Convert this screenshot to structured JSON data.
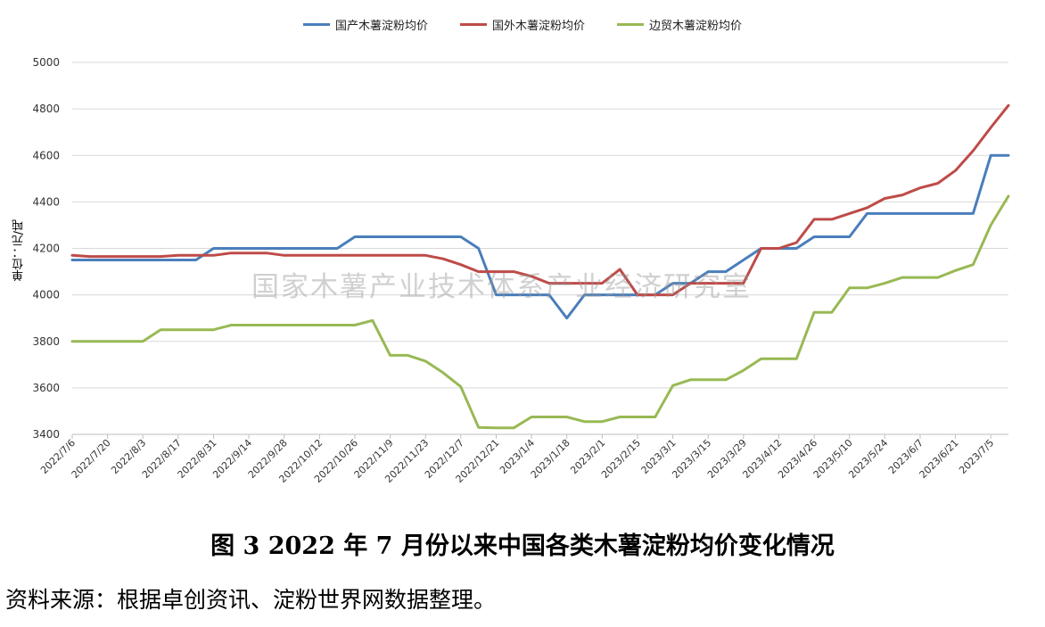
{
  "chart_data": {
    "type": "line",
    "title": "",
    "xlabel": "",
    "ylabel": "单位：元/吨",
    "ylim": [
      3400,
      5000
    ],
    "yticks": [
      3400,
      3600,
      3800,
      4000,
      4200,
      4400,
      4600,
      4800,
      5000
    ],
    "grid": "horizontal",
    "legend_position": "top",
    "xtick_labels": [
      "2022/7/6",
      "2022/7/20",
      "2022/8/3",
      "2022/8/17",
      "2022/8/31",
      "2022/9/14",
      "2022/9/28",
      "2022/10/12",
      "2022/10/26",
      "2022/11/9",
      "2022/11/23",
      "2022/12/7",
      "2022/12/21",
      "2023/1/4",
      "2023/1/18",
      "2023/2/1",
      "2023/2/15",
      "2023/3/1",
      "2023/3/15",
      "2023/3/29",
      "2023/4/12",
      "2023/4/26",
      "2023/5/10",
      "2023/5/24",
      "2023/6/7",
      "2023/6/21",
      "2023/7/5"
    ],
    "x": [
      "2022/7/6",
      "2022/7/13",
      "2022/7/20",
      "2022/7/27",
      "2022/8/3",
      "2022/8/10",
      "2022/8/17",
      "2022/8/24",
      "2022/8/31",
      "2022/9/7",
      "2022/9/14",
      "2022/9/21",
      "2022/9/28",
      "2022/10/5",
      "2022/10/12",
      "2022/10/19",
      "2022/10/26",
      "2022/11/2",
      "2022/11/9",
      "2022/11/16",
      "2022/11/23",
      "2022/11/30",
      "2022/12/7",
      "2022/12/14",
      "2022/12/21",
      "2022/12/28",
      "2023/1/4",
      "2023/1/11",
      "2023/1/18",
      "2023/1/25",
      "2023/2/1",
      "2023/2/8",
      "2023/2/15",
      "2023/2/22",
      "2023/3/1",
      "2023/3/8",
      "2023/3/15",
      "2023/3/22",
      "2023/3/29",
      "2023/4/5",
      "2023/4/12",
      "2023/4/19",
      "2023/4/26",
      "2023/5/3",
      "2023/5/10",
      "2023/5/17",
      "2023/5/24",
      "2023/5/31",
      "2023/6/7",
      "2023/6/14",
      "2023/6/21",
      "2023/6/28",
      "2023/7/5",
      "2023/7/12"
    ],
    "series": [
      {
        "name": "国产木薯淀粉均价",
        "color": "#4a7ebb",
        "values": [
          4150,
          4150,
          4150,
          4150,
          4150,
          4150,
          4150,
          4150,
          4200,
          4200,
          4200,
          4200,
          4200,
          4200,
          4200,
          4200,
          4250,
          4250,
          4250,
          4250,
          4250,
          4250,
          4250,
          4200,
          4000,
          4000,
          4000,
          4000,
          3900,
          4000,
          4000,
          4000,
          4000,
          4000,
          4050,
          4050,
          4100,
          4100,
          4150,
          4200,
          4200,
          4200,
          4250,
          4250,
          4250,
          4350,
          4350,
          4350,
          4350,
          4350,
          4350,
          4350,
          4600,
          4600
        ]
      },
      {
        "name": "国外木薯淀粉均价",
        "color": "#be4b48",
        "values": [
          4170,
          4165,
          4165,
          4165,
          4165,
          4165,
          4170,
          4170,
          4170,
          4180,
          4180,
          4180,
          4170,
          4170,
          4170,
          4170,
          4170,
          4170,
          4170,
          4170,
          4170,
          4155,
          4130,
          4100,
          4100,
          4100,
          4080,
          4050,
          4050,
          4050,
          4050,
          4110,
          4000,
          4000,
          4000,
          4050,
          4050,
          4050,
          4050,
          4200,
          4200,
          4225,
          4325,
          4325,
          4350,
          4375,
          4415,
          4430,
          4460,
          4480,
          4535,
          4620,
          4720,
          4815
        ]
      },
      {
        "name": "边贸木薯淀粉均价",
        "color": "#98b954",
        "values": [
          3800,
          3800,
          3800,
          3800,
          3800,
          3850,
          3850,
          3850,
          3850,
          3870,
          3870,
          3870,
          3870,
          3870,
          3870,
          3870,
          3870,
          3890,
          3740,
          3740,
          3715,
          3665,
          3605,
          3430,
          3428,
          3428,
          3475,
          3475,
          3475,
          3455,
          3455,
          3475,
          3475,
          3475,
          3610,
          3635,
          3635,
          3635,
          3675,
          3725,
          3725,
          3725,
          3925,
          3925,
          4030,
          4030,
          4050,
          4075,
          4075,
          4075,
          4105,
          4130,
          4300,
          4425
        ]
      }
    ]
  },
  "watermark": "国家木薯产业技术体系产业经济研究室",
  "caption": "图 3   2022 年 7 月份以来中国各类木薯淀粉均价变化情况",
  "source": "资料来源：根据卓创资讯、淀粉世界网数据整理。"
}
